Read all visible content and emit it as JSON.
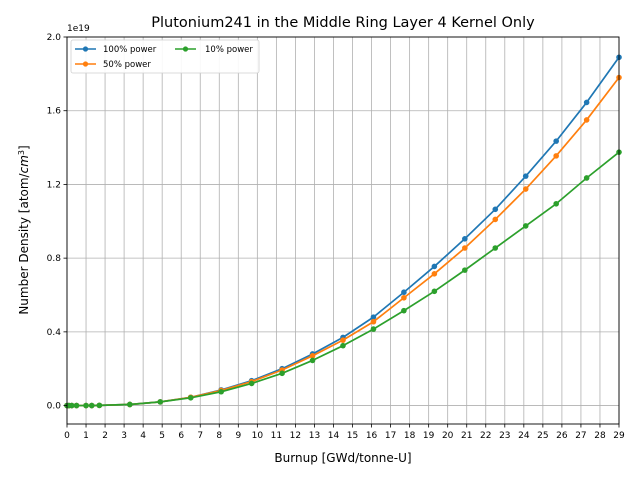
{
  "chart_data": {
    "type": "line",
    "title": "Plutonium241 in the Middle Ring Layer 4 Kernel Only",
    "xlabel": "Burnup [GWd/tonne-U]",
    "ylabel": "Number Density [atom/cm³]",
    "ylabel_main": "Number Density [atom/",
    "ylabel_unit": "cm",
    "ylabel_exp": "3",
    "ylabel_end": "]",
    "y_offset_label": "1e19",
    "xlim": [
      0,
      29
    ],
    "ylim": [
      -0.1,
      2.0
    ],
    "x_ticks": [
      0,
      1,
      2,
      3,
      4,
      5,
      6,
      7,
      8,
      9,
      10,
      11,
      12,
      13,
      14,
      15,
      16,
      17,
      18,
      19,
      20,
      21,
      22,
      23,
      24,
      25,
      26,
      27,
      28,
      29
    ],
    "y_ticks": [
      0.0,
      0.4,
      0.8,
      1.2,
      1.6,
      2.0
    ],
    "y_tick_labels": [
      "0.0",
      "0.4",
      "0.8",
      "1.2",
      "1.6",
      "2.0"
    ],
    "grid": true,
    "legend_position": "upper-left",
    "x": [
      0,
      0.1,
      0.25,
      0.5,
      1.0,
      1.3,
      1.7,
      3.3,
      4.9,
      6.5,
      8.1,
      9.7,
      11.3,
      12.9,
      14.5,
      16.1,
      17.7,
      19.3,
      20.9,
      22.5,
      24.1,
      25.7,
      27.3,
      29.0
    ],
    "series": [
      {
        "name": "100% power",
        "color": "#1f77b4",
        "values": [
          0,
          0,
          0,
          0,
          0,
          0,
          0.001,
          0.006,
          0.02,
          0.045,
          0.085,
          0.135,
          0.2,
          0.28,
          0.37,
          0.48,
          0.615,
          0.755,
          0.905,
          1.065,
          1.245,
          1.435,
          1.645,
          1.89
        ]
      },
      {
        "name": "50% power",
        "color": "#ff7f0e",
        "values": [
          0,
          0,
          0,
          0,
          0,
          0,
          0.001,
          0.006,
          0.02,
          0.045,
          0.082,
          0.13,
          0.193,
          0.27,
          0.355,
          0.455,
          0.585,
          0.715,
          0.855,
          1.01,
          1.175,
          1.355,
          1.55,
          1.78
        ]
      },
      {
        "name": "10% power",
        "color": "#2ca02c",
        "values": [
          0,
          0,
          0,
          0,
          0,
          0,
          0.001,
          0.006,
          0.02,
          0.042,
          0.075,
          0.12,
          0.175,
          0.245,
          0.325,
          0.415,
          0.515,
          0.62,
          0.735,
          0.855,
          0.975,
          1.095,
          1.235,
          1.375
        ]
      }
    ]
  }
}
